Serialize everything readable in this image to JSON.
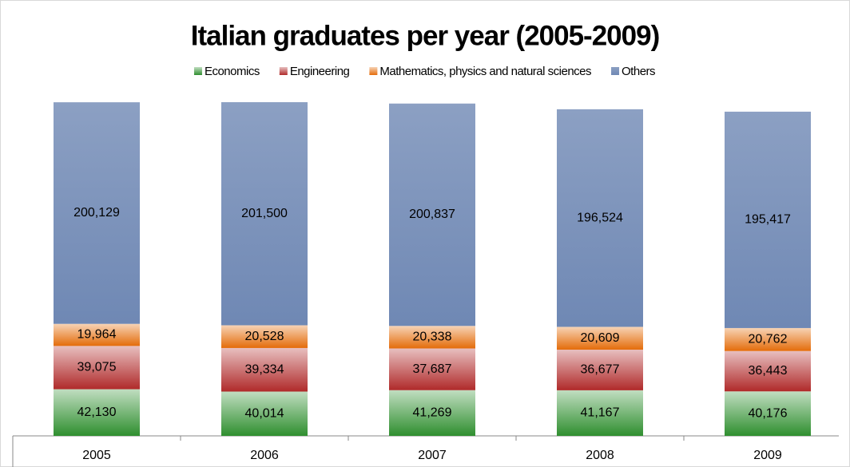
{
  "chart_data": {
    "type": "stacked_bar",
    "title": "Italian graduates per year (2005-2009)",
    "categories": [
      "2005",
      "2006",
      "2007",
      "2008",
      "2009"
    ],
    "series": [
      {
        "name": "Economics",
        "color": "#2f8f2f",
        "values": [
          42130,
          40014,
          41269,
          41167,
          40176
        ],
        "value_labels": [
          "42,130",
          "40,014",
          "41,269",
          "41,167",
          "40,176"
        ]
      },
      {
        "name": "Engineering",
        "color": "#b02a2a",
        "values": [
          39075,
          39334,
          37687,
          36677,
          36443
        ],
        "value_labels": [
          "39,075",
          "39,334",
          "37,687",
          "36,677",
          "36,443"
        ]
      },
      {
        "name": "Mathematics, physics and natural sciences",
        "color": "#e46c0a",
        "values": [
          19964,
          20528,
          20338,
          20609,
          20762
        ],
        "value_labels": [
          "19,964",
          "20,528",
          "20,338",
          "20,609",
          "20,762"
        ]
      },
      {
        "name": "Others",
        "color": "#6f88b4",
        "values": [
          200129,
          201500,
          200837,
          196524,
          195417
        ],
        "value_labels": [
          "200,129",
          "201,500",
          "200,837",
          "196,524",
          "195,417"
        ]
      }
    ]
  }
}
